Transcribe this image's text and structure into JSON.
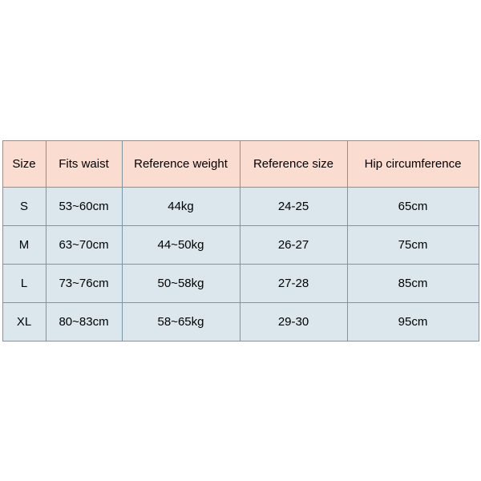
{
  "table": {
    "header_bg": "#fadcd0",
    "row_bg": "#dbe7ed",
    "border_color": "#7a96a3",
    "text_color": "#000000",
    "columns": [
      "Size",
      "Fits waist",
      "Reference weight",
      "Reference size",
      "Hip circumference"
    ],
    "rows": [
      [
        "S",
        "53~60cm",
        "44kg",
        "24-25",
        "65cm"
      ],
      [
        "M",
        "63~70cm",
        "44~50kg",
        "26-27",
        "75cm"
      ],
      [
        "L",
        "73~76cm",
        "50~58kg",
        "27-28",
        "85cm"
      ],
      [
        "XL",
        "80~83cm",
        "58~65kg",
        "29-30",
        "95cm"
      ]
    ]
  }
}
